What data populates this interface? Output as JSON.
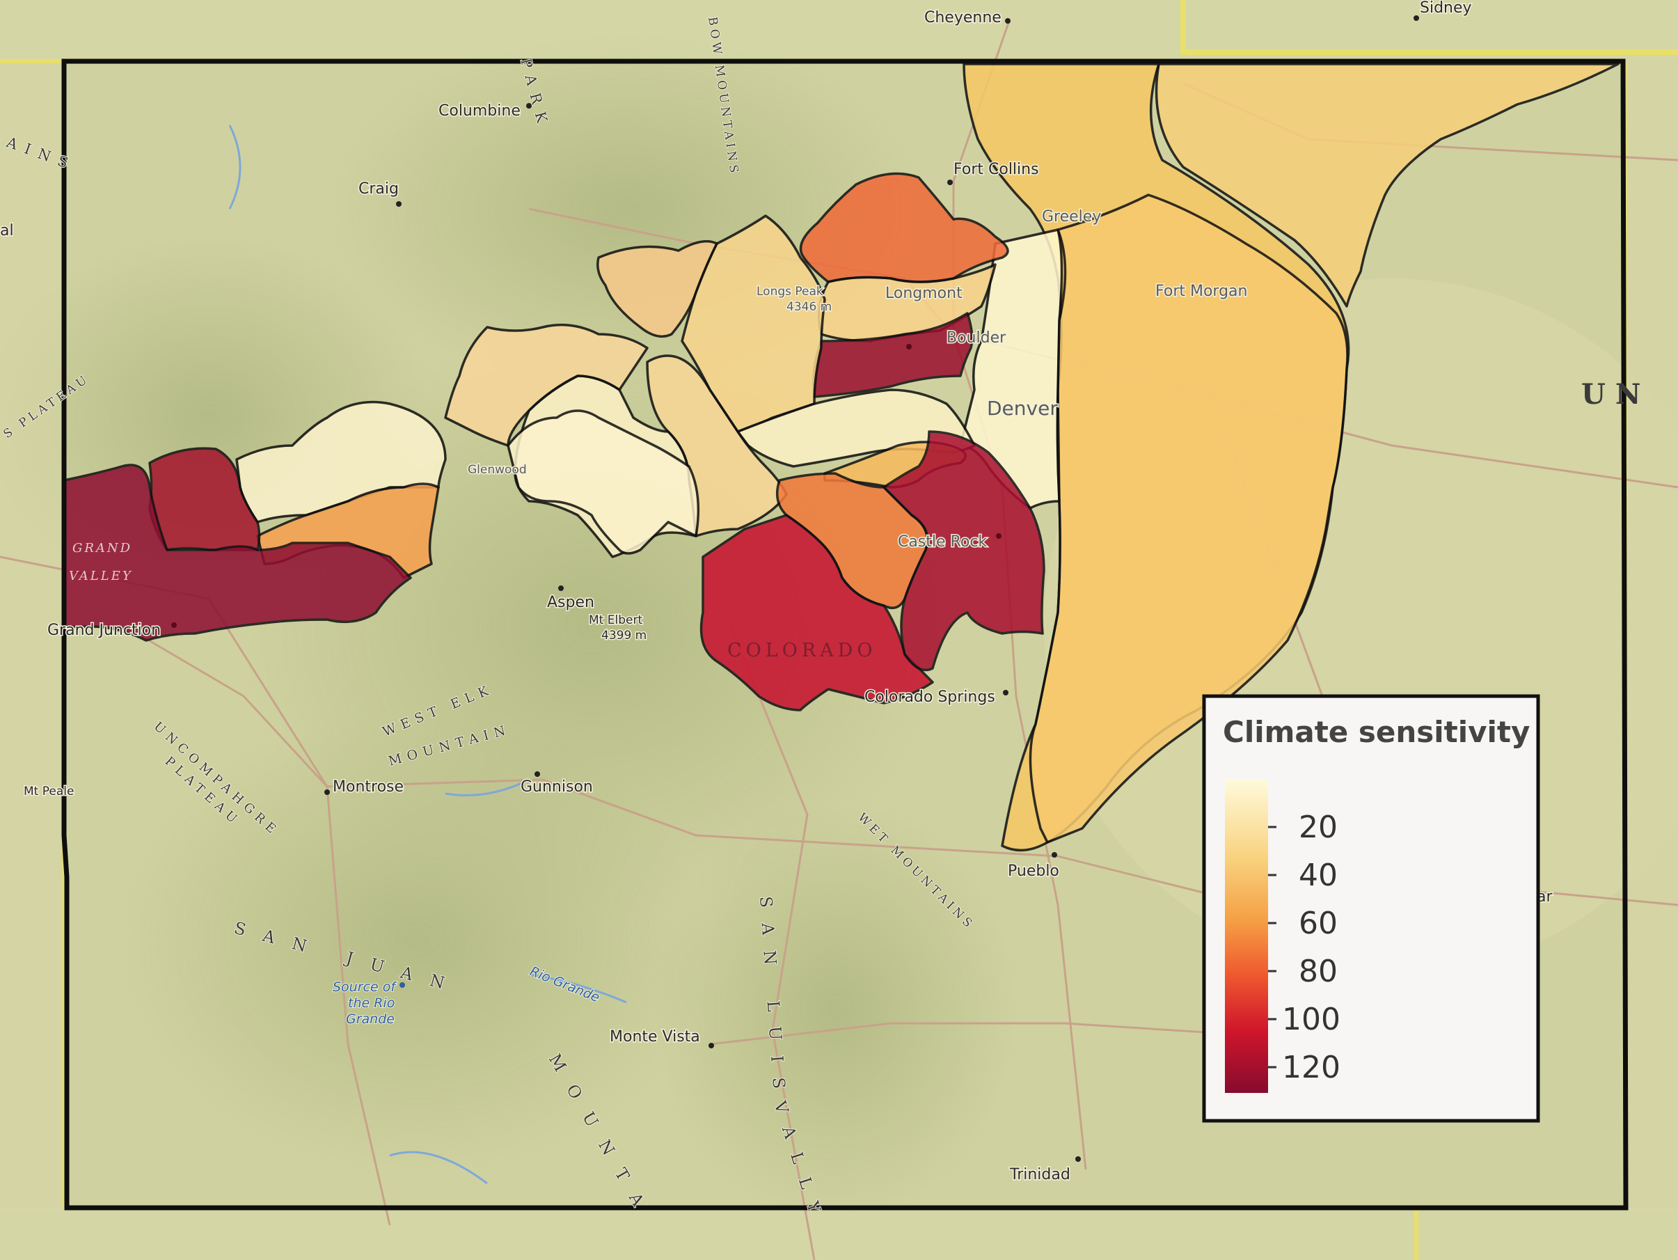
{
  "legend": {
    "title": "Climate sensitivity",
    "ticks": [
      "20",
      "40",
      "60",
      "80",
      "100",
      "120"
    ],
    "color_low": "#fff9d4",
    "color_mid": "#f6a13f",
    "color_high": "#8b0a2e"
  },
  "places": {
    "cheyenne": "Cheyenne",
    "sidney": "Sidney",
    "columbine": "Columbine",
    "craig": "Craig",
    "fort_collins": "Fort Collins",
    "greeley": "Greeley",
    "longmont": "Longmont",
    "boulder": "Boulder",
    "longs_peak": "Longs Peak",
    "longs_peak_elev": "4346 m",
    "fort_morgan": "Fort Morgan",
    "denver": "Denver",
    "castle_rock": "Castle Rock",
    "aspen": "Aspen",
    "mt_elbert": "Mt Elbert",
    "mt_elbert_elev": "4399 m",
    "grand_junction": "Grand Junction",
    "colorado_springs": "Colorado Springs",
    "montrose": "Montrose",
    "gunnison": "Gunnison",
    "mt_peale": "Mt Peale",
    "pueblo": "Pueblo",
    "source_rio_1": "Source of",
    "source_rio_2": "the Rio",
    "source_rio_3": "Grande",
    "monte_vista": "Monte Vista",
    "trinidad": "Trinidad",
    "glenwood": "Glenwood",
    "al": "al",
    "ar": "ar"
  },
  "features": {
    "park_range": "PARK",
    "medicine_bow": "BOW MOUNTAINS",
    "plains": "AINS",
    "colorado_plateau": "S PLATEAU",
    "grand_valley_1": "GRAND",
    "grand_valley_2": "VALLEY",
    "colorado_label": "COLORADO",
    "west_elk": "WEST ELK",
    "mountains": "MOUNTAIN",
    "uncompahgre": "UNCOMPAHGRE",
    "plateau": "PLATEAU",
    "wet_mountains": "WET MOUNTAINS",
    "san_juan": "SAN JUAN",
    "san_juan_mtns": "MOUNTA",
    "san_luis": "SAN LUIS",
    "valley": "VALLY",
    "rio_grande": "Rio Grande",
    "state_edge": "UN"
  }
}
